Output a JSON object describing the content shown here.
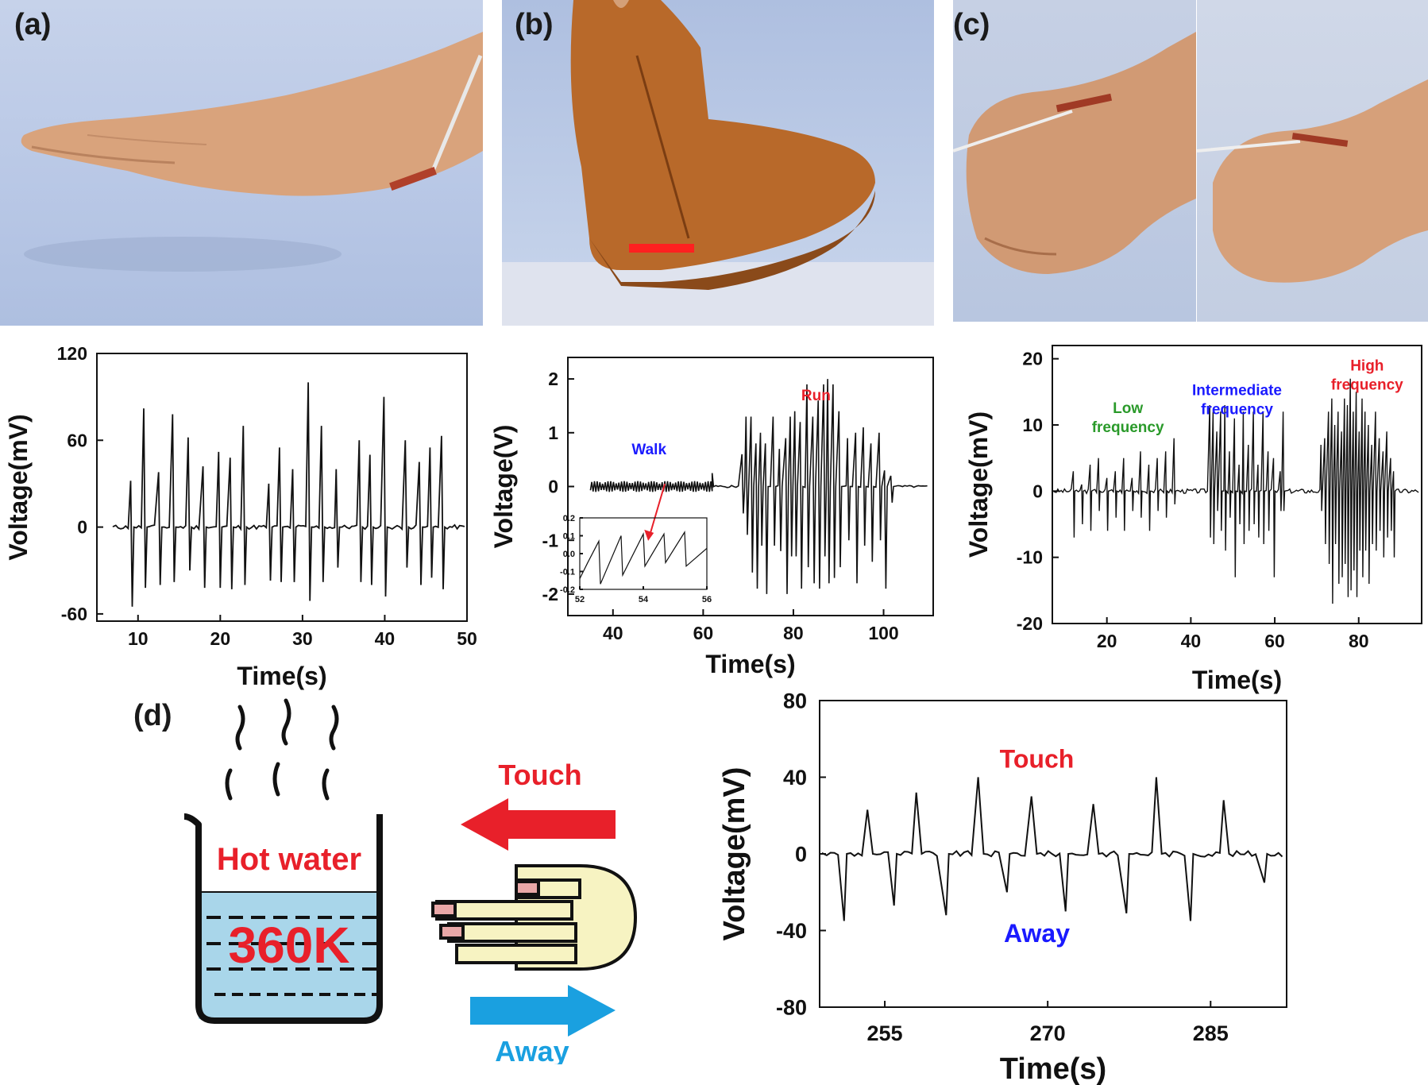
{
  "panels": {
    "a": {
      "label": "(a)"
    },
    "b": {
      "label": "(b)"
    },
    "c": {
      "label": "(c)"
    },
    "d": {
      "label": "(d)"
    }
  },
  "beaker": {
    "hot_label": "Hot water",
    "temp_label": "360K"
  },
  "finger": {
    "touch_label": "Touch",
    "away_label": "Away"
  },
  "colors": {
    "touch": "#e8202a",
    "away": "#1aa0e0",
    "water": "#a9d6ea",
    "finger": "#f7f3c2"
  },
  "chart_data": [
    {
      "id": "a",
      "type": "line",
      "xlabel": "Time(s)",
      "ylabel": "Voltage(mV)",
      "xlim": [
        5,
        50
      ],
      "ylim": [
        -65,
        120
      ],
      "xticks": [
        10,
        20,
        30,
        40,
        50
      ],
      "yticks": [
        -60,
        0,
        60,
        120
      ],
      "spikes": [
        {
          "x": 9.1,
          "up": 32,
          "down": -55
        },
        {
          "x": 10.7,
          "up": 82,
          "down": -42
        },
        {
          "x": 12.5,
          "up": 38,
          "down": -40
        },
        {
          "x": 14.2,
          "up": 78,
          "down": -38
        },
        {
          "x": 16.1,
          "up": 62,
          "down": -30
        },
        {
          "x": 17.9,
          "up": 42,
          "down": -42
        },
        {
          "x": 19.8,
          "up": 52,
          "down": -42
        },
        {
          "x": 21.2,
          "up": 48,
          "down": -43
        },
        {
          "x": 22.8,
          "up": 70,
          "down": -40
        },
        {
          "x": 25.9,
          "up": 30,
          "down": -37
        },
        {
          "x": 27.2,
          "up": 55,
          "down": -38
        },
        {
          "x": 28.8,
          "up": 40,
          "down": -38
        },
        {
          "x": 30.7,
          "up": 100,
          "down": -51
        },
        {
          "x": 32.3,
          "up": 70,
          "down": -38
        },
        {
          "x": 34.1,
          "up": 40,
          "down": -28
        },
        {
          "x": 36.9,
          "up": 60,
          "down": -38
        },
        {
          "x": 38.2,
          "up": 50,
          "down": -40
        },
        {
          "x": 39.9,
          "up": 90,
          "down": -48
        },
        {
          "x": 42.5,
          "up": 60,
          "down": -28
        },
        {
          "x": 44.2,
          "up": 45,
          "down": -40
        },
        {
          "x": 45.5,
          "up": 55,
          "down": -35
        },
        {
          "x": 46.9,
          "up": 63,
          "down": -43
        }
      ]
    },
    {
      "id": "b",
      "type": "line",
      "xlabel": "Time(s)",
      "ylabel": "Voltage(V)",
      "xlim": [
        30,
        111
      ],
      "ylim": [
        -2.4,
        2.4
      ],
      "xticks": [
        40,
        60,
        80,
        100
      ],
      "yticks": [
        -2,
        -1,
        0,
        1,
        2
      ],
      "annotations": [
        {
          "text": "Walk",
          "x": 48,
          "y": 0.6,
          "color": "#1a1aff"
        },
        {
          "text": "Run",
          "x": 85,
          "y": 1.6,
          "color": "#e8202a"
        }
      ],
      "walk_segment": {
        "x": [
          35,
          62
        ],
        "amplitude": 0.1
      },
      "run_spikes": [
        {
          "x": 68.6,
          "up": 0.6,
          "down": -0.5
        },
        {
          "x": 69.5,
          "up": 1.3,
          "down": -0.9
        },
        {
          "x": 70.6,
          "up": 1.3,
          "down": -1.6
        },
        {
          "x": 71.7,
          "up": 0.8,
          "down": -1.9
        },
        {
          "x": 72.7,
          "up": 1.0,
          "down": -1.1
        },
        {
          "x": 73.8,
          "up": 0.8,
          "down": -2.0
        },
        {
          "x": 75.5,
          "up": 1.3,
          "down": -1.1
        },
        {
          "x": 76.9,
          "up": 0.7,
          "down": -1.2
        },
        {
          "x": 78.3,
          "up": 0.9,
          "down": -2.0
        },
        {
          "x": 79.3,
          "up": 1.3,
          "down": -1.3
        },
        {
          "x": 80.3,
          "up": 1.4,
          "down": -1.3
        },
        {
          "x": 81.5,
          "up": 1.2,
          "down": -1.9
        },
        {
          "x": 83.0,
          "up": 1.9,
          "down": -1.5
        },
        {
          "x": 84.3,
          "up": 1.3,
          "down": -1.8
        },
        {
          "x": 85.5,
          "up": 1.6,
          "down": -1.9
        },
        {
          "x": 86.7,
          "up": 1.9,
          "down": -1.3
        },
        {
          "x": 87.6,
          "up": 2.0,
          "down": -1.8
        },
        {
          "x": 88.8,
          "up": 1.9,
          "down": -1.7
        },
        {
          "x": 90.1,
          "up": 1.4,
          "down": -1.5
        },
        {
          "x": 92.0,
          "up": 0.9,
          "down": -1.0
        },
        {
          "x": 93.8,
          "up": 1.0,
          "down": -1.8
        },
        {
          "x": 95.5,
          "up": 1.1,
          "down": -1.1
        },
        {
          "x": 97.2,
          "up": 0.8,
          "down": -1.4
        },
        {
          "x": 99.0,
          "up": 1.0,
          "down": -1.0
        },
        {
          "x": 100.2,
          "up": 0.3,
          "down": -1.9
        },
        {
          "x": 101.6,
          "up": 0.2,
          "down": -0.3
        }
      ]
    },
    {
      "id": "b_inset",
      "type": "line",
      "xlim": [
        52,
        56
      ],
      "ylim": [
        -0.2,
        0.2
      ],
      "xticks": [
        52,
        54,
        56
      ],
      "yticks": [
        -0.2,
        -0.1,
        0.0,
        0.1,
        0.2
      ],
      "ytick_labels": [
        "-0.2",
        "-0.1",
        "0.0",
        "0.1",
        "0.2"
      ],
      "points": [
        [
          52.0,
          -0.14
        ],
        [
          52.25,
          -0.05
        ],
        [
          52.6,
          0.07
        ],
        [
          52.65,
          -0.17
        ],
        [
          53.3,
          0.1
        ],
        [
          53.35,
          -0.12
        ],
        [
          54.0,
          0.11
        ],
        [
          54.05,
          -0.07
        ],
        [
          54.65,
          0.11
        ],
        [
          54.7,
          -0.05
        ],
        [
          55.3,
          0.12
        ],
        [
          55.35,
          -0.07
        ],
        [
          56.0,
          0.03
        ]
      ]
    },
    {
      "id": "c",
      "type": "line",
      "xlabel": "Time(s)",
      "ylabel": "Voltage(mV)",
      "xlim": [
        7,
        95
      ],
      "ylim": [
        -20,
        22
      ],
      "xticks": [
        20,
        40,
        60,
        80
      ],
      "yticks": [
        -20,
        -10,
        0,
        10,
        20
      ],
      "annotations": [
        {
          "lines": [
            "Low",
            "frequency"
          ],
          "color": "#2a9a2a"
        },
        {
          "lines": [
            "Intermediate",
            "frequency"
          ],
          "color": "#1a1aff"
        },
        {
          "lines": [
            "High",
            "frequency"
          ],
          "color": "#e8202a"
        }
      ],
      "spikes": [
        {
          "x": 12,
          "up": 3,
          "down": -7
        },
        {
          "x": 14,
          "up": 1,
          "down": -5
        },
        {
          "x": 16,
          "up": 4,
          "down": -6
        },
        {
          "x": 18,
          "up": 5,
          "down": -3
        },
        {
          "x": 20,
          "up": 2,
          "down": -6
        },
        {
          "x": 22,
          "up": 3,
          "down": -4
        },
        {
          "x": 24,
          "up": 5,
          "down": -6
        },
        {
          "x": 26,
          "up": 2,
          "down": -3
        },
        {
          "x": 28,
          "up": 6,
          "down": -4
        },
        {
          "x": 30,
          "up": 4,
          "down": -6
        },
        {
          "x": 32,
          "up": 5,
          "down": -3
        },
        {
          "x": 34,
          "up": 6,
          "down": -4
        },
        {
          "x": 36,
          "up": 8,
          "down": -2
        },
        {
          "x": 44.5,
          "up": 13,
          "down": -7
        },
        {
          "x": 45.3,
          "up": 12,
          "down": -8
        },
        {
          "x": 46.2,
          "up": 9,
          "down": -3
        },
        {
          "x": 47.1,
          "up": 12,
          "down": -6
        },
        {
          "x": 48.1,
          "up": 13,
          "down": -9
        },
        {
          "x": 49.2,
          "up": 6,
          "down": -4
        },
        {
          "x": 50.4,
          "up": 11,
          "down": -13
        },
        {
          "x": 51.5,
          "up": 4,
          "down": -5
        },
        {
          "x": 52.5,
          "up": 12,
          "down": -8
        },
        {
          "x": 53.7,
          "up": 7,
          "down": -6
        },
        {
          "x": 54.9,
          "up": 12,
          "down": -5
        },
        {
          "x": 56.0,
          "up": 4,
          "down": -7
        },
        {
          "x": 57.2,
          "up": 12,
          "down": -8
        },
        {
          "x": 58.4,
          "up": 6,
          "down": -6
        },
        {
          "x": 59.7,
          "up": 5,
          "down": -13
        },
        {
          "x": 61.3,
          "up": 3,
          "down": -3
        },
        {
          "x": 62.0,
          "up": 12,
          "down": -3
        },
        {
          "x": 71.0,
          "up": 7,
          "down": -3
        },
        {
          "x": 71.9,
          "up": 8,
          "down": -8
        },
        {
          "x": 72.8,
          "up": 12,
          "down": -11
        },
        {
          "x": 73.6,
          "up": 14,
          "down": -17
        },
        {
          "x": 74.3,
          "up": 10,
          "down": -8
        },
        {
          "x": 75.1,
          "up": 12,
          "down": -14
        },
        {
          "x": 75.9,
          "up": 9,
          "down": -13
        },
        {
          "x": 76.6,
          "up": 14,
          "down": -11
        },
        {
          "x": 77.3,
          "up": 13,
          "down": -16
        },
        {
          "x": 78.0,
          "up": 17,
          "down": -15
        },
        {
          "x": 78.7,
          "up": 12,
          "down": -12
        },
        {
          "x": 79.4,
          "up": 15,
          "down": -16
        },
        {
          "x": 80.1,
          "up": 9,
          "down": -9
        },
        {
          "x": 80.8,
          "up": 14,
          "down": -13
        },
        {
          "x": 81.5,
          "up": 12,
          "down": -9
        },
        {
          "x": 82.3,
          "up": 10,
          "down": -14
        },
        {
          "x": 83.1,
          "up": 7,
          "down": -8
        },
        {
          "x": 84.0,
          "up": 12,
          "down": -9
        },
        {
          "x": 84.9,
          "up": 8,
          "down": -6
        },
        {
          "x": 85.8,
          "up": 6,
          "down": -10
        },
        {
          "x": 86.7,
          "up": 9,
          "down": -7
        },
        {
          "x": 87.6,
          "up": 5,
          "down": -6
        },
        {
          "x": 88.3,
          "up": 3,
          "down": -10
        }
      ]
    },
    {
      "id": "d",
      "type": "line",
      "xlabel": "Time(s)",
      "ylabel": "Voltage(mV)",
      "xlim": [
        249,
        292
      ],
      "ylim": [
        -80,
        80
      ],
      "xticks": [
        255,
        270,
        285
      ],
      "yticks": [
        -80,
        -40,
        0,
        40,
        80
      ],
      "annotations": [
        {
          "text": "Touch",
          "color": "#e8202a"
        },
        {
          "text": "Away",
          "color": "#1a1aff"
        }
      ],
      "spikes": [
        {
          "x": 251.0,
          "up": 0,
          "down": -35
        },
        {
          "x": 253.4,
          "up": 23,
          "down": 0
        },
        {
          "x": 255.6,
          "up": 0,
          "down": -27
        },
        {
          "x": 257.9,
          "up": 32,
          "down": 0
        },
        {
          "x": 260.4,
          "up": 0,
          "down": -32
        },
        {
          "x": 263.6,
          "up": 40,
          "down": 0
        },
        {
          "x": 266.0,
          "up": 0,
          "down": -20
        },
        {
          "x": 268.5,
          "up": 30,
          "down": 0
        },
        {
          "x": 271.4,
          "up": 0,
          "down": -30
        },
        {
          "x": 274.2,
          "up": 26,
          "down": 0
        },
        {
          "x": 277.0,
          "up": 0,
          "down": -31
        },
        {
          "x": 280.0,
          "up": 40,
          "down": 0
        },
        {
          "x": 282.9,
          "up": 0,
          "down": -35
        },
        {
          "x": 286.2,
          "up": 28,
          "down": 0
        },
        {
          "x": 289.7,
          "up": 0,
          "down": -15
        }
      ]
    }
  ]
}
